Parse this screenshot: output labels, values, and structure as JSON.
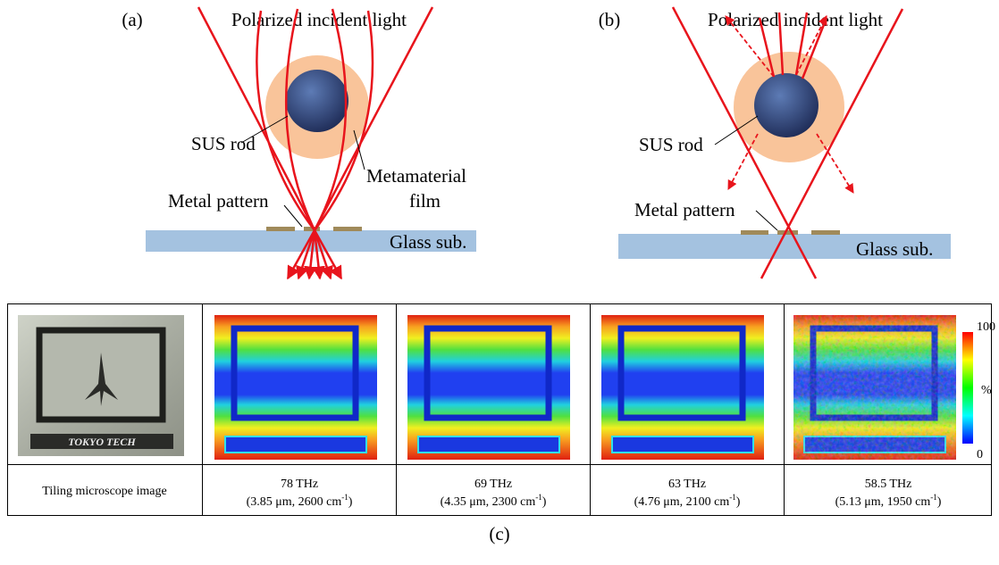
{
  "panel_a": {
    "label": "(a)",
    "title": "Polarized incident light",
    "rod": "SUS rod",
    "film": [
      "Metamaterial",
      "film"
    ],
    "pattern": "Metal pattern",
    "substrate": "Glass sub."
  },
  "panel_b": {
    "label": "(b)",
    "title": "Polarized incident light",
    "rod": "SUS rod",
    "pattern": "Metal pattern",
    "substrate": "Glass sub."
  },
  "table": {
    "microscope_logo": "TOKYO TECH",
    "colorbar": {
      "max": "100",
      "unit": "%",
      "min": "0"
    },
    "row_header": "Tiling microscope image",
    "columns": [
      {
        "freq": "78 THz",
        "detail": "(3.85 μm, 2600 cm",
        "sup": "-1",
        "close": ")"
      },
      {
        "freq": "69 THz",
        "detail": "(4.35 μm, 2300 cm",
        "sup": "-1",
        "close": ")"
      },
      {
        "freq": "63 THz",
        "detail": "(4.76 μm, 2100 cm",
        "sup": "-1",
        "close": ")"
      },
      {
        "freq": "58.5 THz",
        "detail": "(5.13 μm, 1950 cm",
        "sup": "-1",
        "close": ")"
      }
    ]
  },
  "caption": "(c)"
}
